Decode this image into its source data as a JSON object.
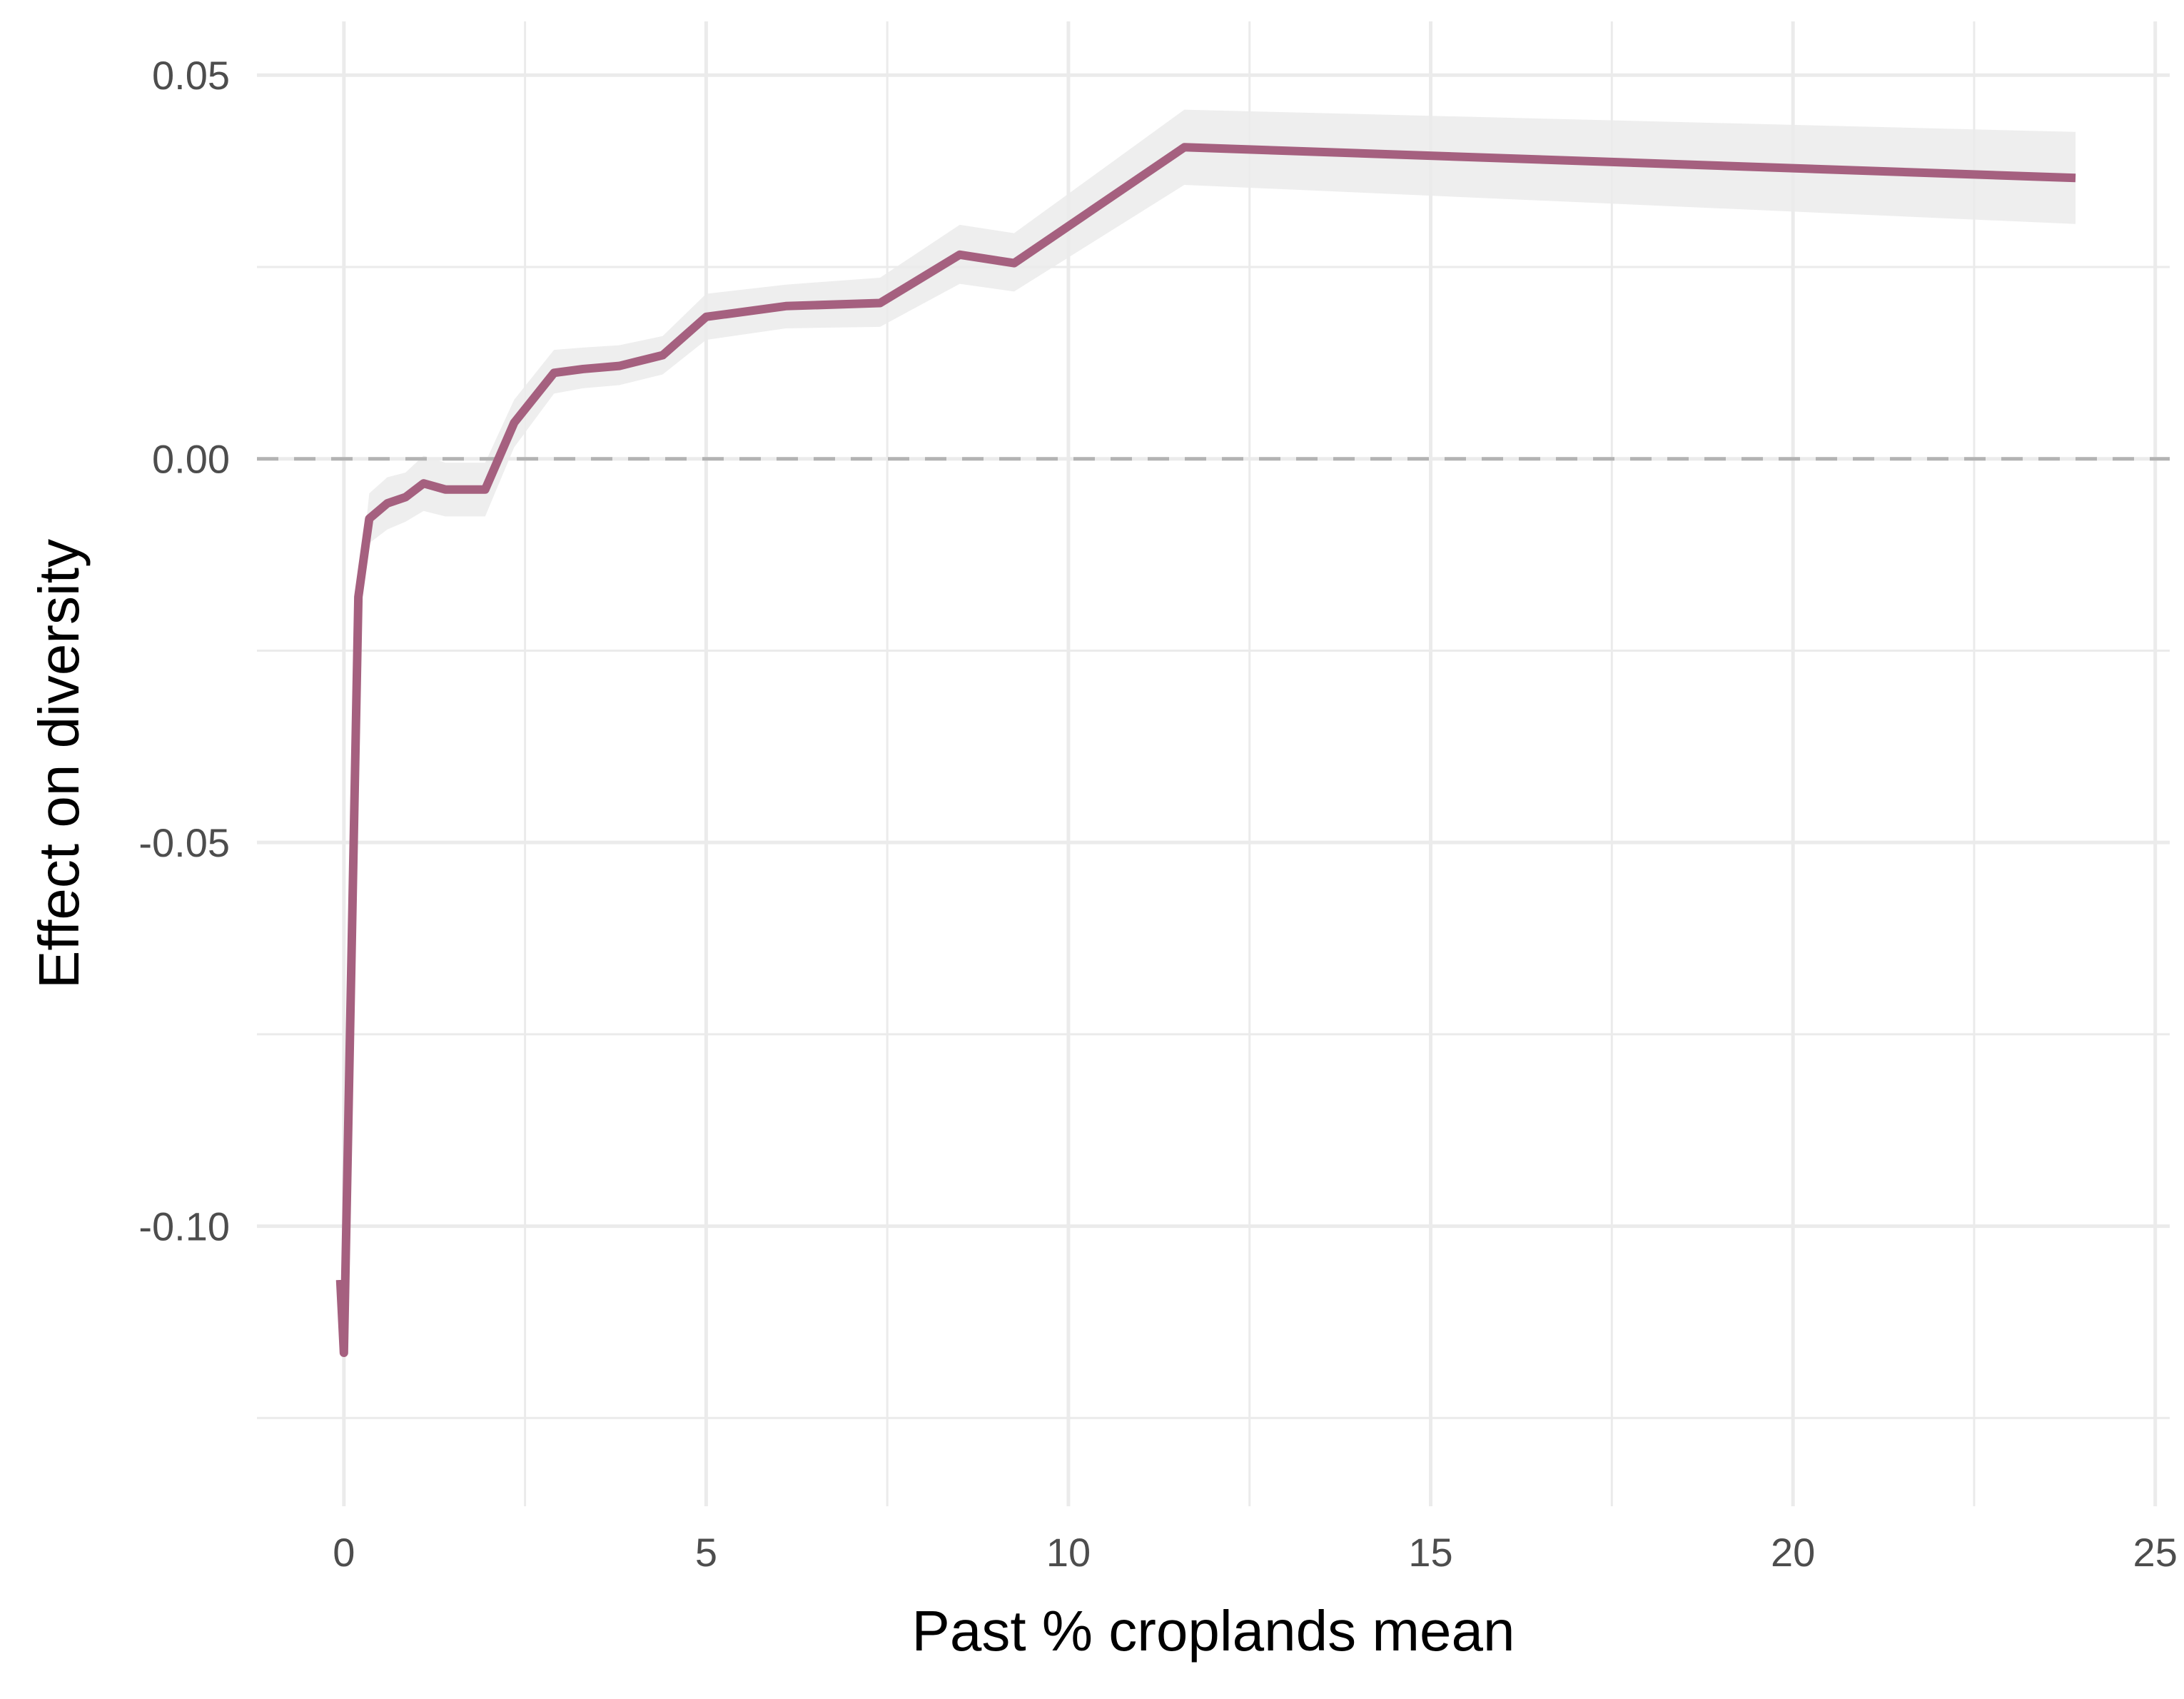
{
  "chart_data": {
    "type": "line",
    "title": "",
    "xlabel": "Past % croplands mean",
    "ylabel": "Effect on diversity",
    "xlim": [
      -1.2,
      25.2
    ],
    "ylim": [
      -0.1365,
      0.057
    ],
    "x_ticks": [
      0,
      5,
      10,
      15,
      20,
      25
    ],
    "x_tick_labels": [
      "0",
      "5",
      "10",
      "15",
      "20",
      "25"
    ],
    "y_ticks": [
      -0.1,
      -0.05,
      0.0,
      0.05
    ],
    "y_tick_labels": [
      "-0.10",
      "-0.05",
      "0.00",
      "0.05"
    ],
    "grid": true,
    "reference_line": {
      "y": 0,
      "style": "dashed",
      "color": "#b3b3b3"
    },
    "line_color": "#a5607f",
    "band_color": "#ebebeb",
    "series": [
      {
        "x": [
          -0.05,
          0.0,
          0.2,
          0.35,
          0.6,
          0.85,
          1.1,
          1.4,
          1.95,
          2.35,
          2.9,
          3.3,
          3.8,
          4.4,
          5.0,
          6.1,
          7.4,
          8.5,
          9.25,
          11.6,
          23.9
        ],
        "y": [
          -0.107,
          -0.1165,
          -0.018,
          -0.0078,
          -0.0058,
          -0.005,
          -0.0032,
          -0.004,
          -0.004,
          0.0047,
          0.0112,
          0.0117,
          0.0121,
          0.0135,
          0.0185,
          0.0199,
          0.0203,
          0.0266,
          0.0255,
          0.0406,
          0.0366
        ],
        "lower": [
          -0.107,
          -0.1165,
          -0.018,
          -0.011,
          -0.0092,
          -0.0082,
          -0.0068,
          -0.0075,
          -0.0075,
          0.0015,
          0.0085,
          0.0092,
          0.0096,
          0.011,
          0.0155,
          0.017,
          0.0172,
          0.0228,
          0.0218,
          0.0357,
          0.0306
        ],
        "upper": [
          -0.107,
          -0.1165,
          -0.018,
          -0.0045,
          -0.0024,
          -0.0018,
          0.0004,
          -0.0005,
          -0.0005,
          0.0077,
          0.0142,
          0.0145,
          0.0148,
          0.016,
          0.0215,
          0.0227,
          0.0236,
          0.0305,
          0.0294,
          0.0455,
          0.0426
        ]
      }
    ]
  }
}
